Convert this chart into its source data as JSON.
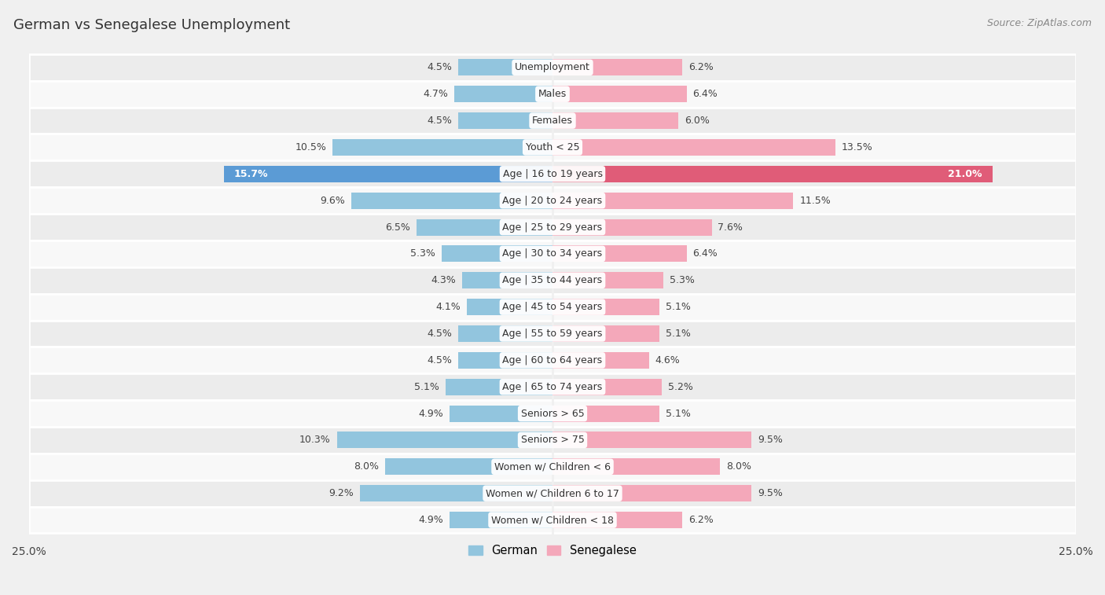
{
  "title": "German vs Senegalese Unemployment",
  "source": "Source: ZipAtlas.com",
  "categories": [
    "Unemployment",
    "Males",
    "Females",
    "Youth < 25",
    "Age | 16 to 19 years",
    "Age | 20 to 24 years",
    "Age | 25 to 29 years",
    "Age | 30 to 34 years",
    "Age | 35 to 44 years",
    "Age | 45 to 54 years",
    "Age | 55 to 59 years",
    "Age | 60 to 64 years",
    "Age | 65 to 74 years",
    "Seniors > 65",
    "Seniors > 75",
    "Women w/ Children < 6",
    "Women w/ Children 6 to 17",
    "Women w/ Children < 18"
  ],
  "german": [
    4.5,
    4.7,
    4.5,
    10.5,
    15.7,
    9.6,
    6.5,
    5.3,
    4.3,
    4.1,
    4.5,
    4.5,
    5.1,
    4.9,
    10.3,
    8.0,
    9.2,
    4.9
  ],
  "senegalese": [
    6.2,
    6.4,
    6.0,
    13.5,
    21.0,
    11.5,
    7.6,
    6.4,
    5.3,
    5.1,
    5.1,
    4.6,
    5.2,
    5.1,
    9.5,
    8.0,
    9.5,
    6.2
  ],
  "german_color": "#92c5de",
  "senegalese_color": "#f4a8ba",
  "highlight_german_color": "#5b9bd5",
  "highlight_senegalese_color": "#e05c78",
  "highlight_rows": [
    4
  ],
  "max_val": 25.0,
  "bg_color": "#f0f0f0",
  "row_bg_even": "#ececec",
  "row_bg_odd": "#f8f8f8",
  "bar_height": 0.62,
  "title_fontsize": 13,
  "source_fontsize": 9,
  "label_fontsize": 9,
  "cat_fontsize": 9
}
